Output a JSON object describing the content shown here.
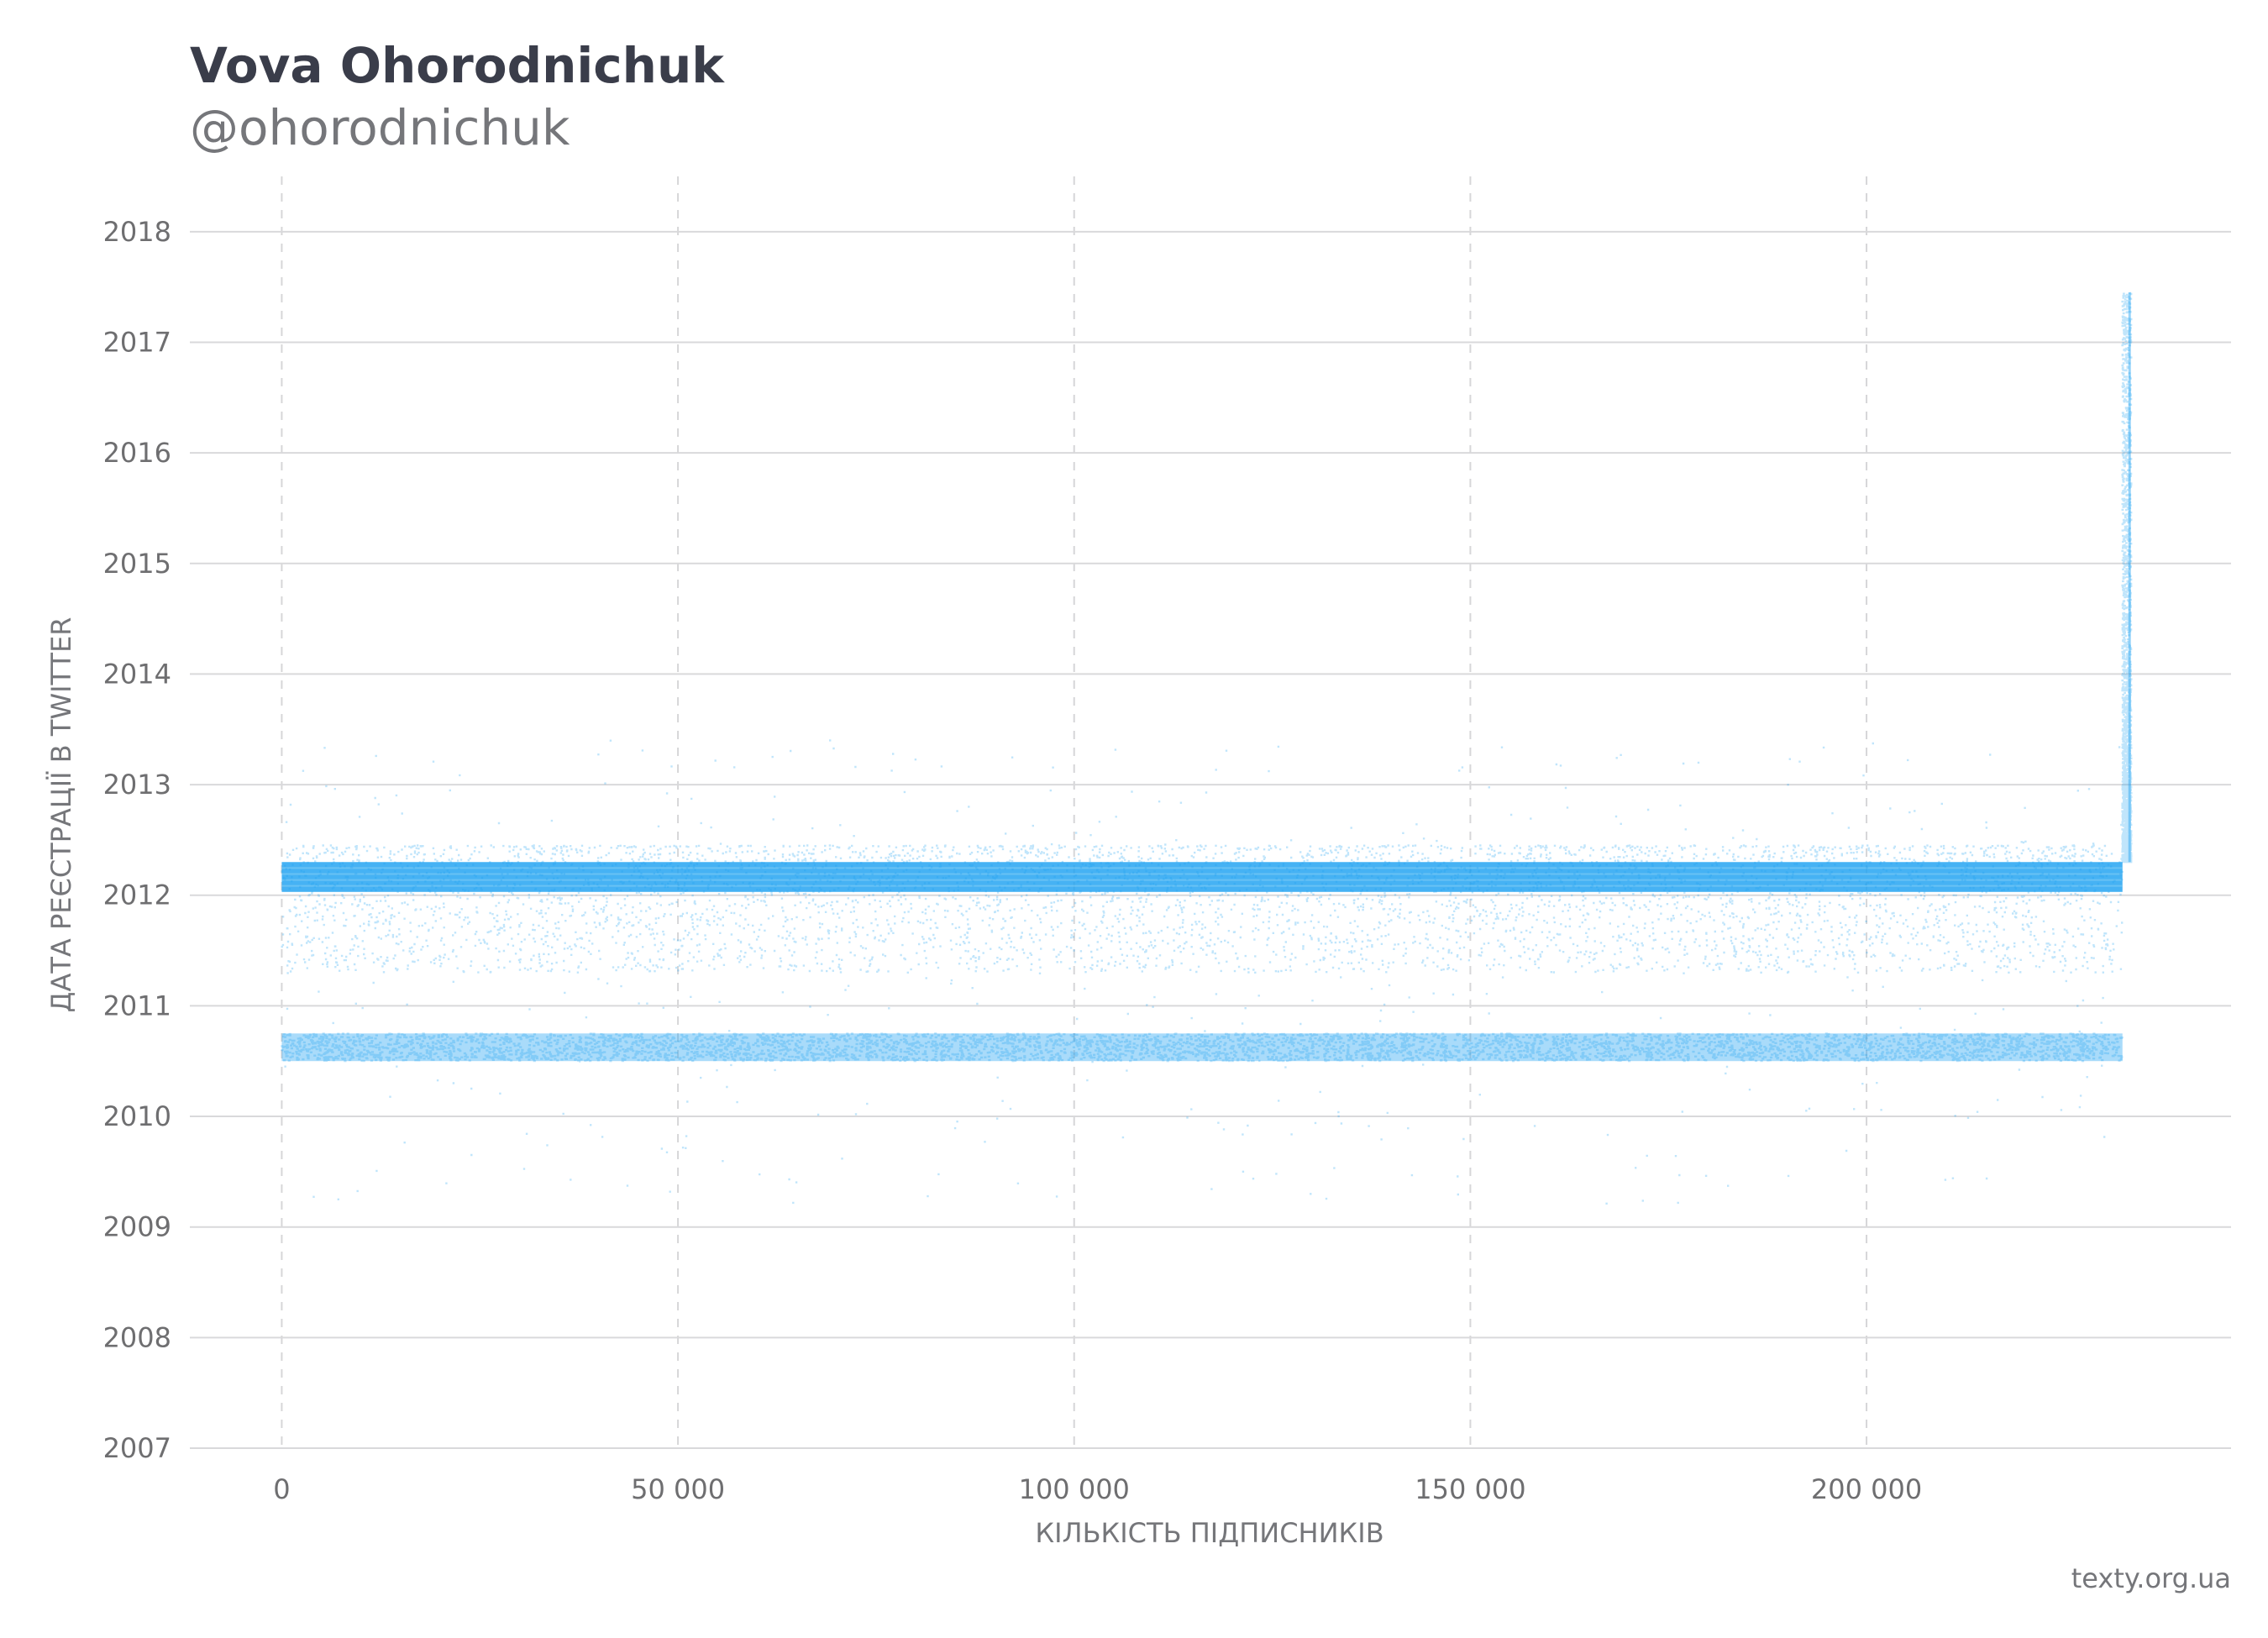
{
  "header": {
    "title": "Vova Ohorodnichuk",
    "subtitle": "@ohorodnichuk"
  },
  "source": "texty.org.ua",
  "chart_data": {
    "type": "scatter",
    "xlabel": "КІЛЬКІСТЬ ПІДПИСНИКІВ",
    "ylabel": "ДАТА РЕЄСТРАЦІЇ В TWITTER",
    "xlim": [
      -11600,
      246000
    ],
    "ylim": [
      2007,
      2018.5
    ],
    "x_ticks": [
      0,
      50000,
      100000,
      150000,
      200000
    ],
    "x_tick_labels": [
      "0",
      "50 000",
      "100 000",
      "150 000",
      "200 000"
    ],
    "y_ticks": [
      2007,
      2008,
      2009,
      2010,
      2011,
      2012,
      2013,
      2014,
      2015,
      2016,
      2017,
      2018
    ],
    "y_tick_labels": [
      "2007",
      "2008",
      "2009",
      "2010",
      "2011",
      "2012",
      "2013",
      "2014",
      "2015",
      "2016",
      "2017",
      "2018"
    ],
    "grid": {
      "horizontal": "solid",
      "vertical": "dashed"
    },
    "point_color": "#1da1f2",
    "bands": [
      {
        "x_range": [
          0,
          232300
        ],
        "y_range": [
          2012.03,
          2012.3
        ],
        "density": "dense"
      },
      {
        "x_range": [
          0,
          232300
        ],
        "y_range": [
          2010.5,
          2010.75
        ],
        "density": "medium"
      },
      {
        "x_range": [
          0,
          232300
        ],
        "y_range": [
          2011.3,
          2012.45
        ],
        "density": "sparse"
      }
    ],
    "tail": {
      "x_range": [
        232300,
        233400
      ],
      "y_range": [
        2012.3,
        2017.45
      ]
    }
  }
}
